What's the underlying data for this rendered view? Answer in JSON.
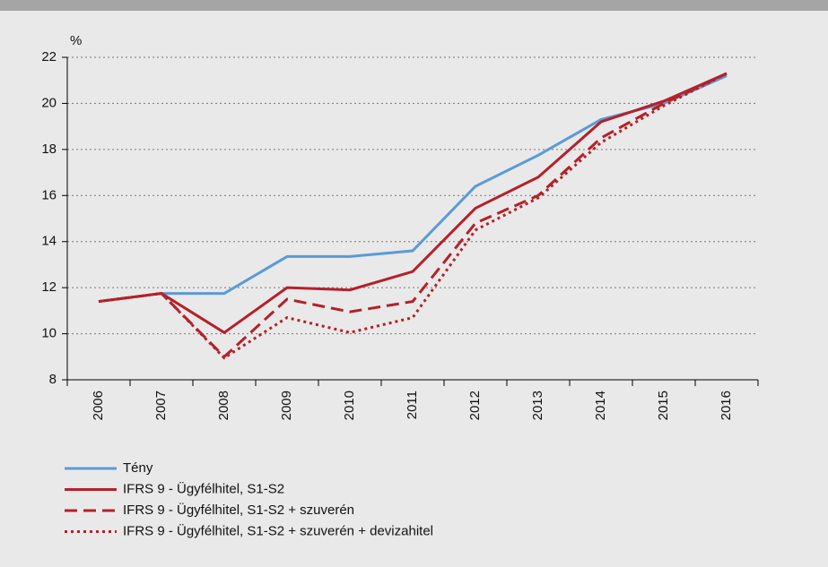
{
  "chart_data": {
    "type": "line",
    "y_unit": "%",
    "categories": [
      "2006",
      "2007",
      "2008",
      "2009",
      "2010",
      "2011",
      "2012",
      "2013",
      "2014",
      "2015",
      "2016"
    ],
    "ylim": [
      8,
      22
    ],
    "yticks": [
      8,
      10,
      12,
      14,
      16,
      18,
      20,
      22
    ],
    "grid": true,
    "series": [
      {
        "name": "Tény",
        "color": "#5b9bd5",
        "dash": "solid",
        "values": [
          11.4,
          11.75,
          11.75,
          13.35,
          13.35,
          13.6,
          16.4,
          17.75,
          19.3,
          20.0,
          21.2
        ]
      },
      {
        "name": "IFRS 9 - Ügyfélhitel, S1-S2",
        "color": "#b5202a",
        "dash": "solid",
        "values": [
          11.4,
          11.75,
          10.05,
          12.0,
          11.9,
          12.7,
          15.45,
          16.8,
          19.2,
          20.1,
          21.3
        ]
      },
      {
        "name": "IFRS 9 - Ügyfélhitel, S1-S2 + szuverén",
        "color": "#b5202a",
        "dash": "dashed",
        "values": [
          11.4,
          11.75,
          9.0,
          11.5,
          10.95,
          11.4,
          14.8,
          16.0,
          18.5,
          20.0,
          21.3
        ]
      },
      {
        "name": "IFRS 9 - Ügyfélhitel, S1-S2 + szuverén + devizahitel",
        "color": "#b5202a",
        "dash": "dotted",
        "values": [
          11.4,
          11.75,
          8.95,
          10.7,
          10.05,
          10.7,
          14.5,
          15.9,
          18.3,
          19.9,
          21.3
        ]
      }
    ]
  }
}
